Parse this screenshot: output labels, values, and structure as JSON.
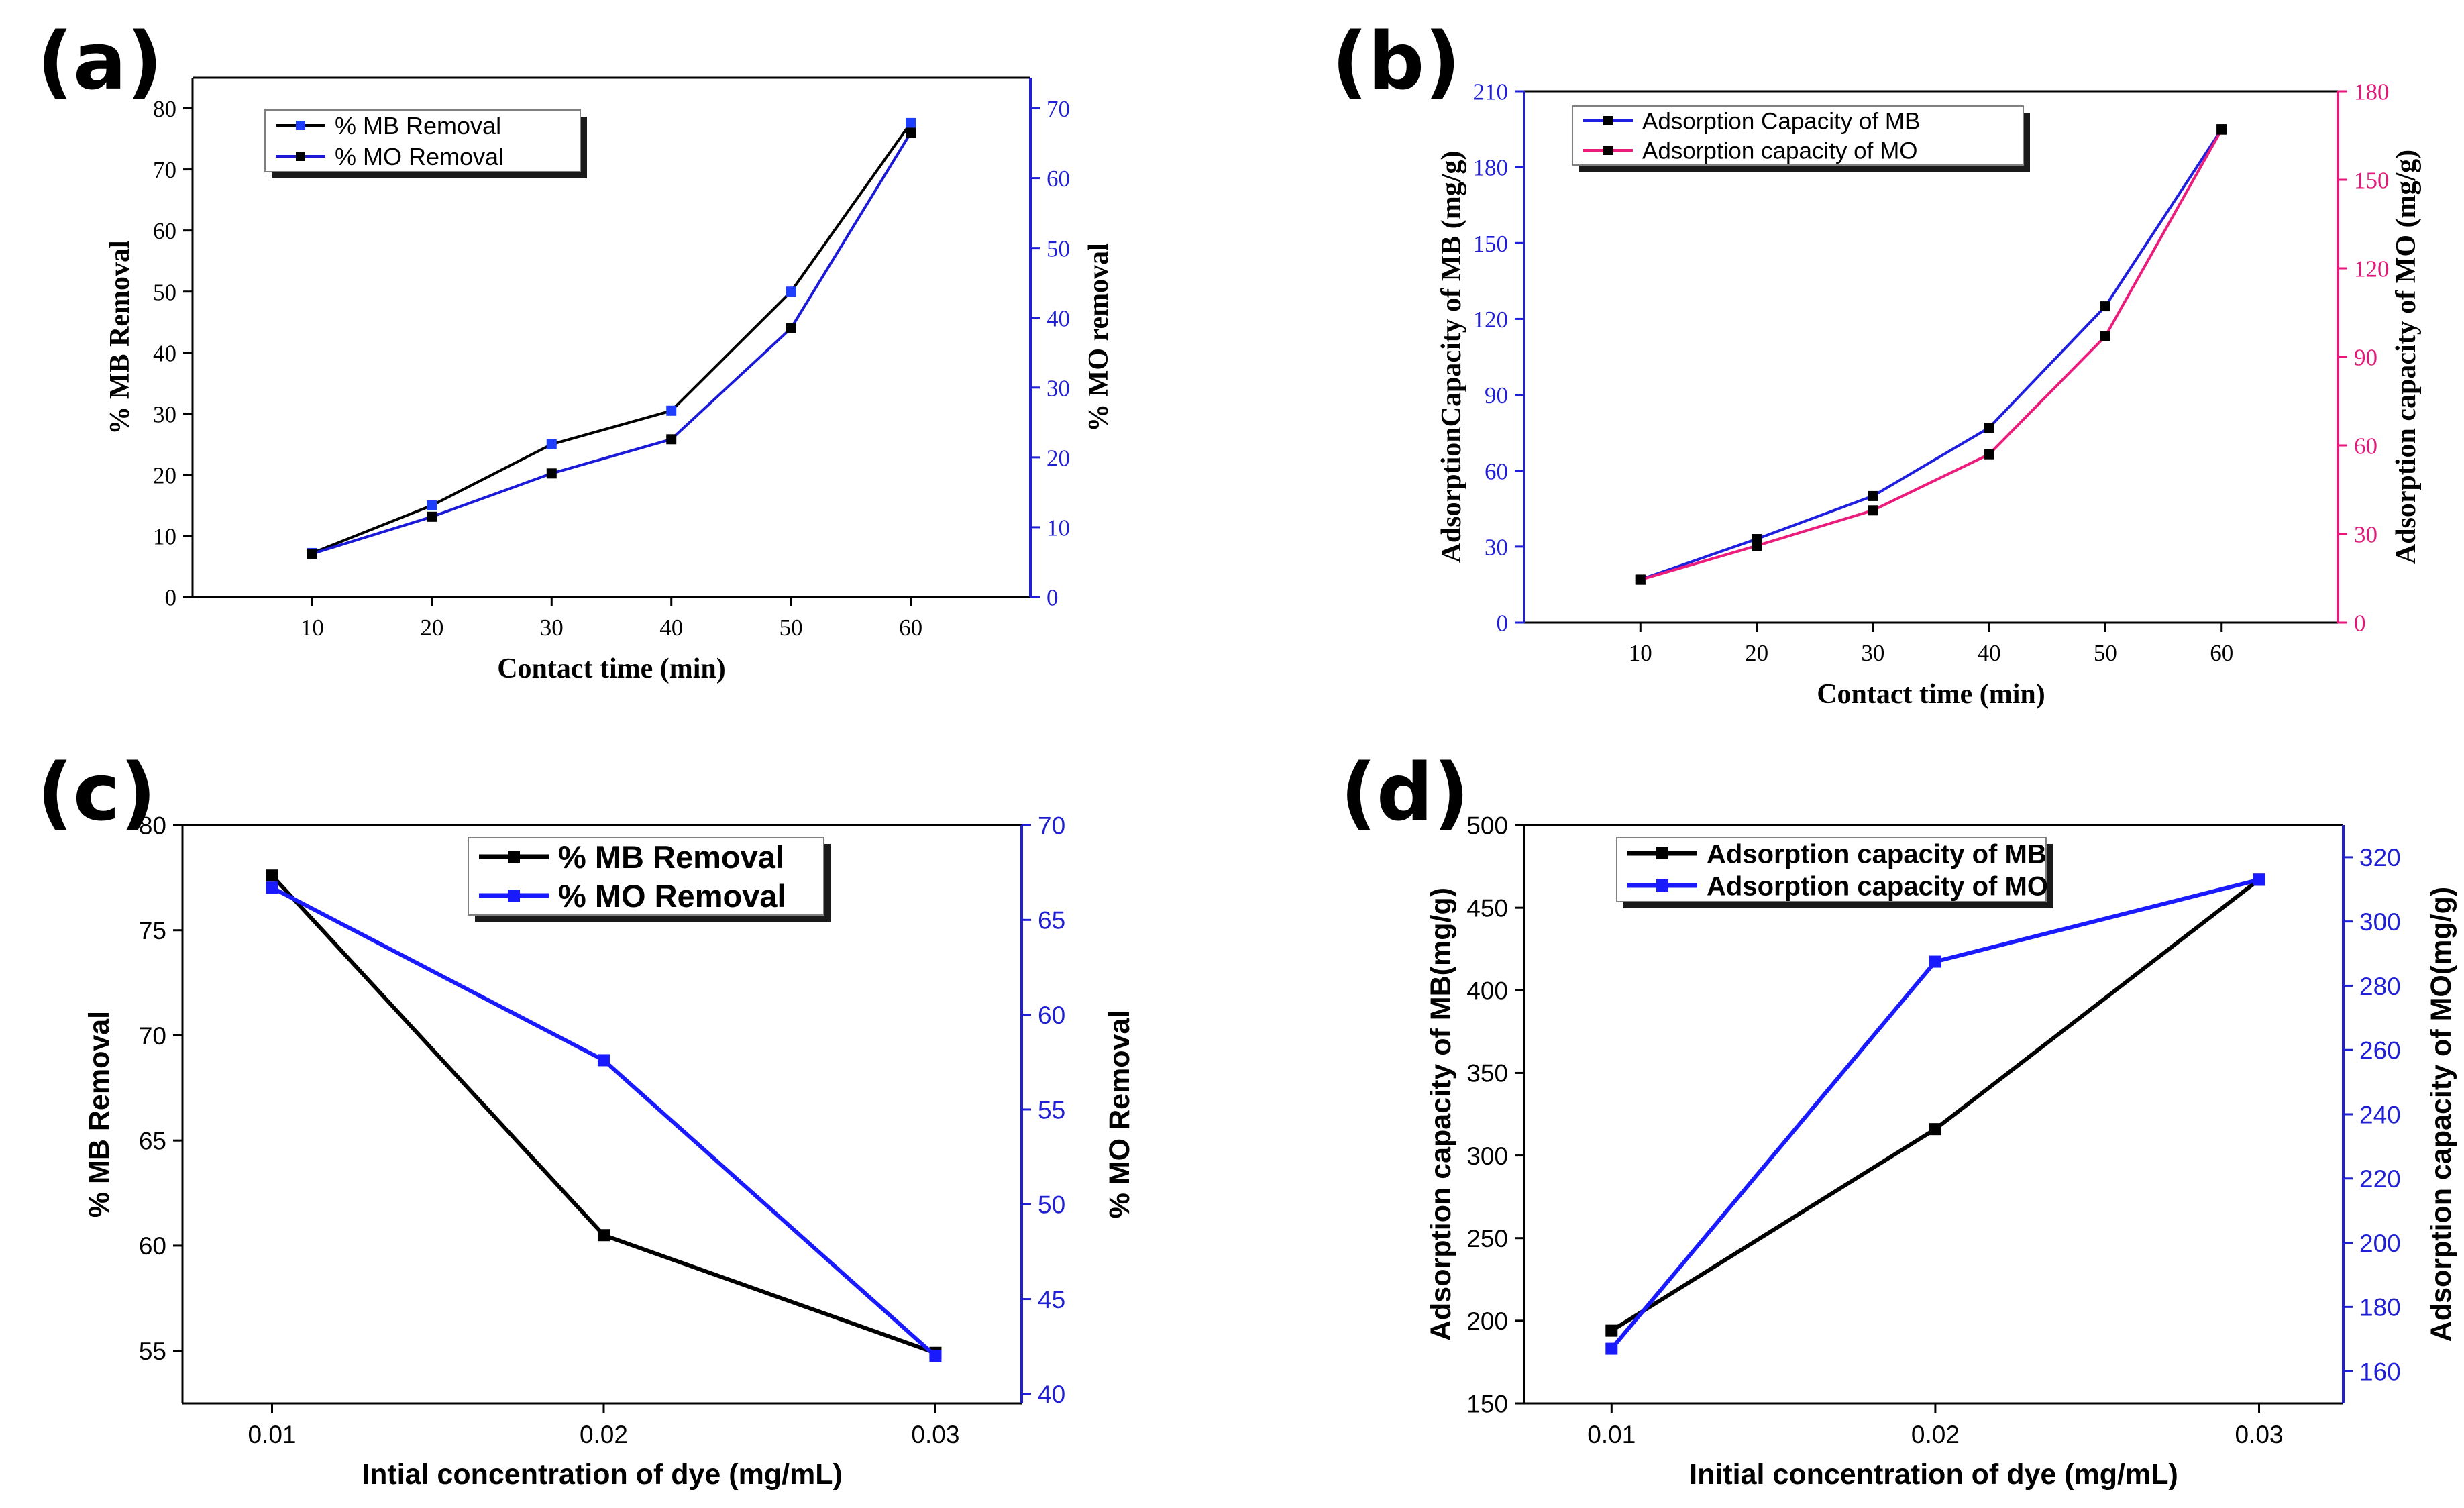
{
  "chart_data": [
    {
      "id": "a",
      "panel_label": "(a)",
      "type": "line",
      "style": "serif",
      "xlabel": "Contact time (min)",
      "ylabel_left": "% MB Removal",
      "ylabel_right": "% MO removal",
      "x": [
        10,
        20,
        30,
        40,
        50,
        60
      ],
      "x_ticks": [
        "10",
        "20",
        "30",
        "40",
        "50",
        "60"
      ],
      "xlim": [
        0,
        70
      ],
      "ylim_left": [
        0,
        85
      ],
      "ylim_right": [
        0,
        74.375
      ],
      "y_ticks_left": [
        "0",
        "10",
        "20",
        "30",
        "40",
        "50",
        "60",
        "70",
        "80"
      ],
      "y_ticks_right": [
        "0",
        "10",
        "20",
        "30",
        "40",
        "50",
        "60",
        "70"
      ],
      "right_axis_color": "#1f1fd6",
      "legend_position": "top-left",
      "series": [
        {
          "name": "% MB Removal",
          "axis": "left",
          "line_color": "#000000",
          "marker_color": "#1f3fff",
          "values": [
            7.2,
            15,
            25,
            30.5,
            50,
            77.6
          ]
        },
        {
          "name": "% MO Removal",
          "axis": "right",
          "line_color": "#1a1ad8",
          "marker_color": "#000000",
          "values": [
            6.2,
            11.5,
            17.7,
            22.6,
            38.5,
            66.5
          ]
        }
      ]
    },
    {
      "id": "b",
      "panel_label": "(b)",
      "type": "line",
      "style": "serif",
      "xlabel": "Contact time (min)",
      "ylabel_left": "AdsorptionCapacity of MB (mg/g)",
      "ylabel_right": "Adsorption capacity of MO (mg/g)",
      "x": [
        10,
        20,
        30,
        40,
        50,
        60
      ],
      "x_ticks": [
        "10",
        "20",
        "30",
        "40",
        "50",
        "60"
      ],
      "xlim": [
        0,
        70
      ],
      "ylim_left": [
        0,
        210
      ],
      "ylim_right": [
        0,
        180
      ],
      "y_ticks_left": [
        "0",
        "30",
        "60",
        "90",
        "120",
        "150",
        "180",
        "210"
      ],
      "y_ticks_right": [
        "0",
        "30",
        "60",
        "90",
        "120",
        "150",
        "180"
      ],
      "left_axis_color": "#1f1fd6",
      "right_axis_color": "#e5177a",
      "legend_position": "top-left",
      "series": [
        {
          "name": "Adsorption Capacity of MB",
          "axis": "left",
          "line_color": "#1f1fe0",
          "marker_color": "#000000",
          "values": [
            17,
            33,
            50,
            77,
            125,
            195
          ]
        },
        {
          "name": "Adsorption capacity of MO",
          "axis": "right",
          "line_color": "#ec1c7c",
          "marker_color": "#000000",
          "values": [
            14.5,
            26,
            38,
            57,
            97,
            167
          ]
        }
      ]
    },
    {
      "id": "c",
      "panel_label": "(c)",
      "type": "line",
      "style": "sans",
      "xlabel": "Intial concentration of dye (mg/mL)",
      "ylabel_left": "% MB Removal",
      "ylabel_right": "% MO Removal",
      "x": [
        0.01,
        0.02,
        0.03
      ],
      "x_ticks": [
        "0.01",
        "0.02",
        "0.03"
      ],
      "x_tick_values": [
        0.01,
        0.02,
        0.03
      ],
      "xlim": [
        0.0073,
        0.0326
      ],
      "ylim_left": [
        52.5,
        80
      ],
      "ylim_right": [
        39.5,
        70
      ],
      "y_ticks_left": [
        "55",
        "60",
        "65",
        "70",
        "75",
        "80"
      ],
      "y_ticks_right": [
        "40",
        "45",
        "50",
        "55",
        "60",
        "65",
        "70"
      ],
      "right_axis_color": "#1f1fd6",
      "legend_position": "top-center",
      "series": [
        {
          "name": "% MB Removal",
          "axis": "left",
          "line_color": "#000000",
          "marker_color": "#000000",
          "values": [
            77.6,
            60.5,
            54.9
          ]
        },
        {
          "name": "% MO Removal",
          "axis": "right",
          "line_color": "#1a1aff",
          "marker_color": "#1a1aff",
          "values": [
            66.7,
            57.6,
            42
          ]
        }
      ]
    },
    {
      "id": "d",
      "panel_label": "(d)",
      "type": "line",
      "style": "sans",
      "xlabel": "Initial concentration of dye (mg/mL)",
      "ylabel_left": "Adsorption capacity of MB(mg/g)",
      "ylabel_right": "Adsorption capacity of MO(mg/g)",
      "x": [
        0.01,
        0.02,
        0.03
      ],
      "x_ticks": [
        "0.01",
        "0.02",
        "0.03"
      ],
      "x_tick_values": [
        0.01,
        0.02,
        0.03
      ],
      "xlim": [
        0.0073,
        0.0326
      ],
      "ylim_left": [
        150,
        500
      ],
      "ylim_right": [
        150,
        330
      ],
      "y_ticks_left": [
        "150",
        "200",
        "250",
        "300",
        "350",
        "400",
        "450",
        "500"
      ],
      "y_ticks_right": [
        "160",
        "180",
        "200",
        "220",
        "240",
        "260",
        "280",
        "300",
        "320"
      ],
      "right_axis_color": "#1f1fd6",
      "legend_position": "top-left",
      "series": [
        {
          "name": "Adsorption capacity of MB",
          "axis": "left",
          "line_color": "#000000",
          "marker_color": "#000000",
          "values": [
            194,
            316,
            467
          ]
        },
        {
          "name": "Adsorption capacity of MO",
          "axis": "right",
          "line_color": "#1a1aff",
          "marker_color": "#1a1aff",
          "values": [
            167,
            287.5,
            313
          ]
        }
      ]
    }
  ]
}
